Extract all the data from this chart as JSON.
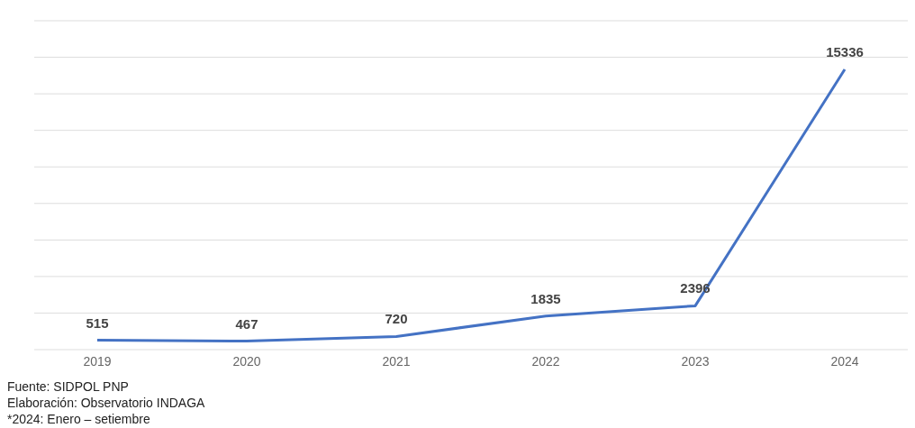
{
  "chart_data": {
    "type": "line",
    "categories": [
      "2019",
      "2020",
      "2021",
      "2022",
      "2023",
      "2024"
    ],
    "series": [
      {
        "color": "#4472c4",
        "values": [
          515,
          467,
          720,
          1835,
          2396,
          15336
        ]
      }
    ],
    "grid": "y",
    "tick_labels": "x",
    "data_labels": true,
    "marker": "none",
    "line_style": "solid",
    "annotations": [
      "Fuente: SIDPOL PNP",
      "Elaboración: Observatorio INDAGA",
      "*2024: Enero – setiembre"
    ]
  }
}
